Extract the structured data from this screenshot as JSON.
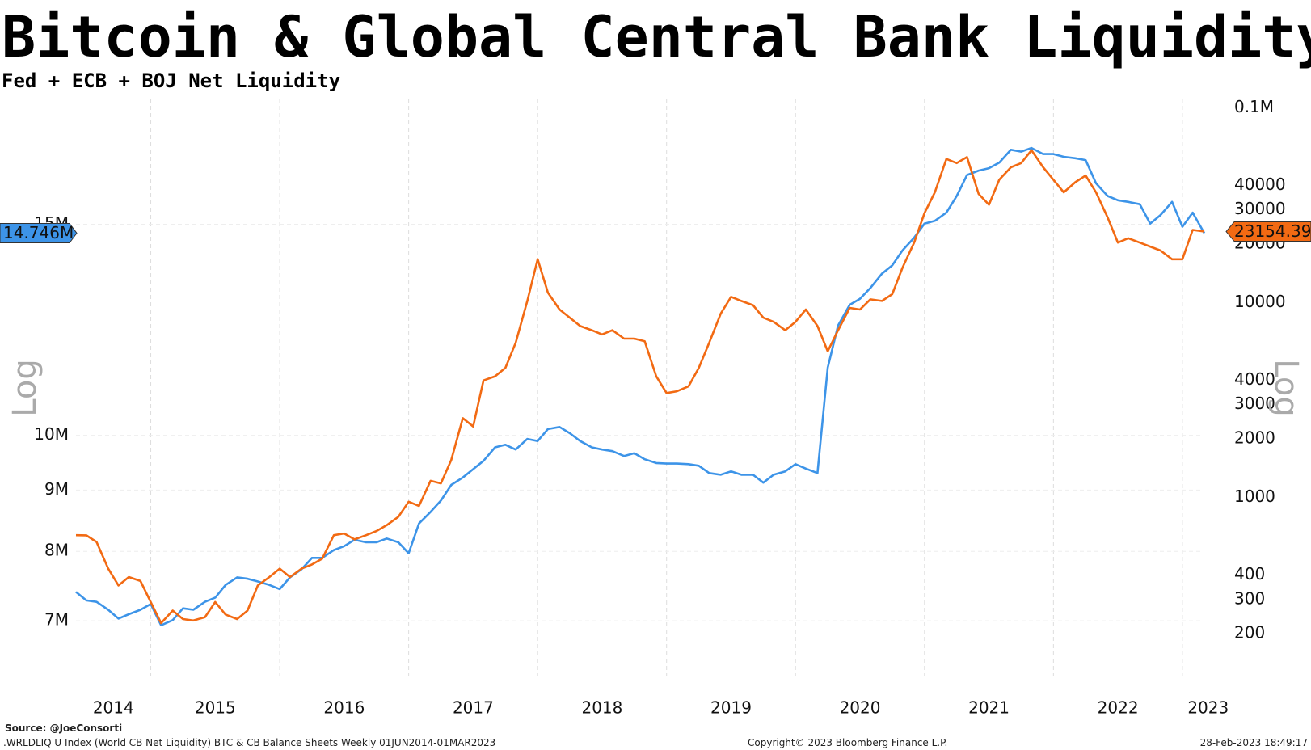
{
  "chart_data": {
    "type": "line",
    "title": "Bitcoin & Global Central Bank Liquidity",
    "subtitle": "Fed + ECB + BOJ Net Liquidity",
    "y_scale_label": "Log",
    "log_scale": true,
    "grid": true,
    "x": [
      2014.42,
      2014.5,
      2014.58,
      2014.67,
      2014.75,
      2014.83,
      2014.92,
      2015.0,
      2015.08,
      2015.17,
      2015.25,
      2015.33,
      2015.42,
      2015.5,
      2015.58,
      2015.67,
      2015.75,
      2015.83,
      2015.92,
      2016.0,
      2016.08,
      2016.17,
      2016.25,
      2016.33,
      2016.42,
      2016.5,
      2016.58,
      2016.67,
      2016.75,
      2016.83,
      2016.92,
      2017.0,
      2017.08,
      2017.17,
      2017.25,
      2017.33,
      2017.42,
      2017.5,
      2017.58,
      2017.67,
      2017.75,
      2017.83,
      2017.92,
      2018.0,
      2018.08,
      2018.17,
      2018.25,
      2018.33,
      2018.42,
      2018.5,
      2018.58,
      2018.67,
      2018.75,
      2018.83,
      2018.92,
      2019.0,
      2019.08,
      2019.17,
      2019.25,
      2019.33,
      2019.42,
      2019.5,
      2019.58,
      2019.67,
      2019.75,
      2019.83,
      2019.92,
      2020.0,
      2020.08,
      2020.17,
      2020.25,
      2020.33,
      2020.42,
      2020.5,
      2020.58,
      2020.67,
      2020.75,
      2020.83,
      2020.92,
      2021.0,
      2021.08,
      2021.17,
      2021.25,
      2021.33,
      2021.42,
      2021.5,
      2021.58,
      2021.67,
      2021.75,
      2021.83,
      2021.92,
      2022.0,
      2022.08,
      2022.17,
      2022.25,
      2022.33,
      2022.42,
      2022.5,
      2022.58,
      2022.67,
      2022.75,
      2022.83,
      2022.92,
      2023.0,
      2023.08,
      2023.17
    ],
    "xlim": [
      2014.42,
      2023.17
    ],
    "xticks": [
      {
        "value": 2014.71,
        "label": "2014"
      },
      {
        "value": 2015.5,
        "label": "2015"
      },
      {
        "value": 2016.5,
        "label": "2016"
      },
      {
        "value": 2017.5,
        "label": "2017"
      },
      {
        "value": 2018.5,
        "label": "2018"
      },
      {
        "value": 2019.5,
        "label": "2019"
      },
      {
        "value": 2020.5,
        "label": "2020"
      },
      {
        "value": 2021.5,
        "label": "2021"
      },
      {
        "value": 2022.5,
        "label": "2022"
      },
      {
        "value": 2023.2,
        "label": "2023"
      }
    ],
    "x_grid": [
      2015,
      2016,
      2017,
      2018,
      2019,
      2020,
      2021,
      2022,
      2023
    ],
    "ylim": [
      6300000,
      19100000
    ],
    "yticks": [
      {
        "value": 7000000,
        "label": "7M"
      },
      {
        "value": 8000000,
        "label": "8M"
      },
      {
        "value": 9000000,
        "label": "9M"
      },
      {
        "value": 10000000,
        "label": "10M"
      },
      {
        "value": 15000000,
        "label": "15M"
      }
    ],
    "y2lim": [
      122,
      111400
    ],
    "y2ticks": [
      200,
      300,
      400,
      1000,
      2000,
      3000,
      4000,
      10000,
      20000,
      30000,
      40000,
      {
        "value": 100000,
        "label": "0.1M"
      }
    ],
    "series": [
      {
        "color": "#3d94e8",
        "end_label": "14.746M",
        "values": [
          7400000,
          7280000,
          7260000,
          7150000,
          7030000,
          7090000,
          7150000,
          7230000,
          6940000,
          7010000,
          7170000,
          7150000,
          7260000,
          7320000,
          7500000,
          7610000,
          7590000,
          7550000,
          7500000,
          7440000,
          7610000,
          7730000,
          7900000,
          7900000,
          8020000,
          8080000,
          8180000,
          8140000,
          8140000,
          8200000,
          8140000,
          7970000,
          8440000,
          8630000,
          8820000,
          9090000,
          9220000,
          9370000,
          9520000,
          9770000,
          9820000,
          9730000,
          9930000,
          9890000,
          10120000,
          10160000,
          10040000,
          9890000,
          9770000,
          9730000,
          9700000,
          9610000,
          9660000,
          9550000,
          9480000,
          9470000,
          9470000,
          9460000,
          9430000,
          9300000,
          9270000,
          9330000,
          9270000,
          9270000,
          9130000,
          9270000,
          9330000,
          9460000,
          9380000,
          9300000,
          11390000,
          12350000,
          12850000,
          13000000,
          13270000,
          13640000,
          13860000,
          14270000,
          14620000,
          15020000,
          15100000,
          15340000,
          15840000,
          16490000,
          16630000,
          16710000,
          16890000,
          17310000,
          17250000,
          17370000,
          17170000,
          17170000,
          17080000,
          17030000,
          16970000,
          16230000,
          15840000,
          15710000,
          15660000,
          15590000,
          15020000,
          15270000,
          15660000,
          14930000,
          15340000,
          14746000
        ]
      },
      {
        "color": "#f26a13",
        "axis": "y2",
        "end_label": "23154.39",
        "values": [
          641,
          640,
          592,
          432,
          354,
          391,
          373,
          291,
          227,
          263,
          238,
          234,
          243,
          291,
          251,
          238,
          263,
          354,
          391,
          432,
          391,
          432,
          454,
          486,
          641,
          654,
          610,
          641,
          673,
          722,
          797,
          952,
          906,
          1219,
          1183,
          1560,
          2556,
          2316,
          3990,
          4190,
          4630,
          6220,
          10200,
          16700,
          11250,
          9220,
          8370,
          7590,
          7220,
          6870,
          7220,
          6540,
          6540,
          6340,
          4190,
          3440,
          3510,
          3720,
          4630,
          6220,
          8780,
          10710,
          10200,
          9710,
          8370,
          7970,
          7220,
          7970,
          9220,
          7590,
          5630,
          7220,
          9400,
          9220,
          10400,
          10200,
          11050,
          15150,
          20330,
          28800,
          36800,
          54600,
          52000,
          55800,
          36100,
          31800,
          42700,
          49500,
          52000,
          60500,
          49500,
          42700,
          36800,
          41500,
          44900,
          36800,
          27400,
          20330,
          21400,
          20330,
          19400,
          18500,
          16700,
          16700,
          23600,
          23154.39
        ]
      }
    ],
    "source": "Source: @JoeConsorti",
    "footer_left": ".WRLDLIQ U Index (World CB Net Liquidity) BTC & CB Balance Sheets  Weekly 01JUN2014-01MAR2023",
    "footer_center": "Copyright© 2023 Bloomberg Finance L.P.",
    "footer_right": "28-Feb-2023 18:49:17"
  }
}
